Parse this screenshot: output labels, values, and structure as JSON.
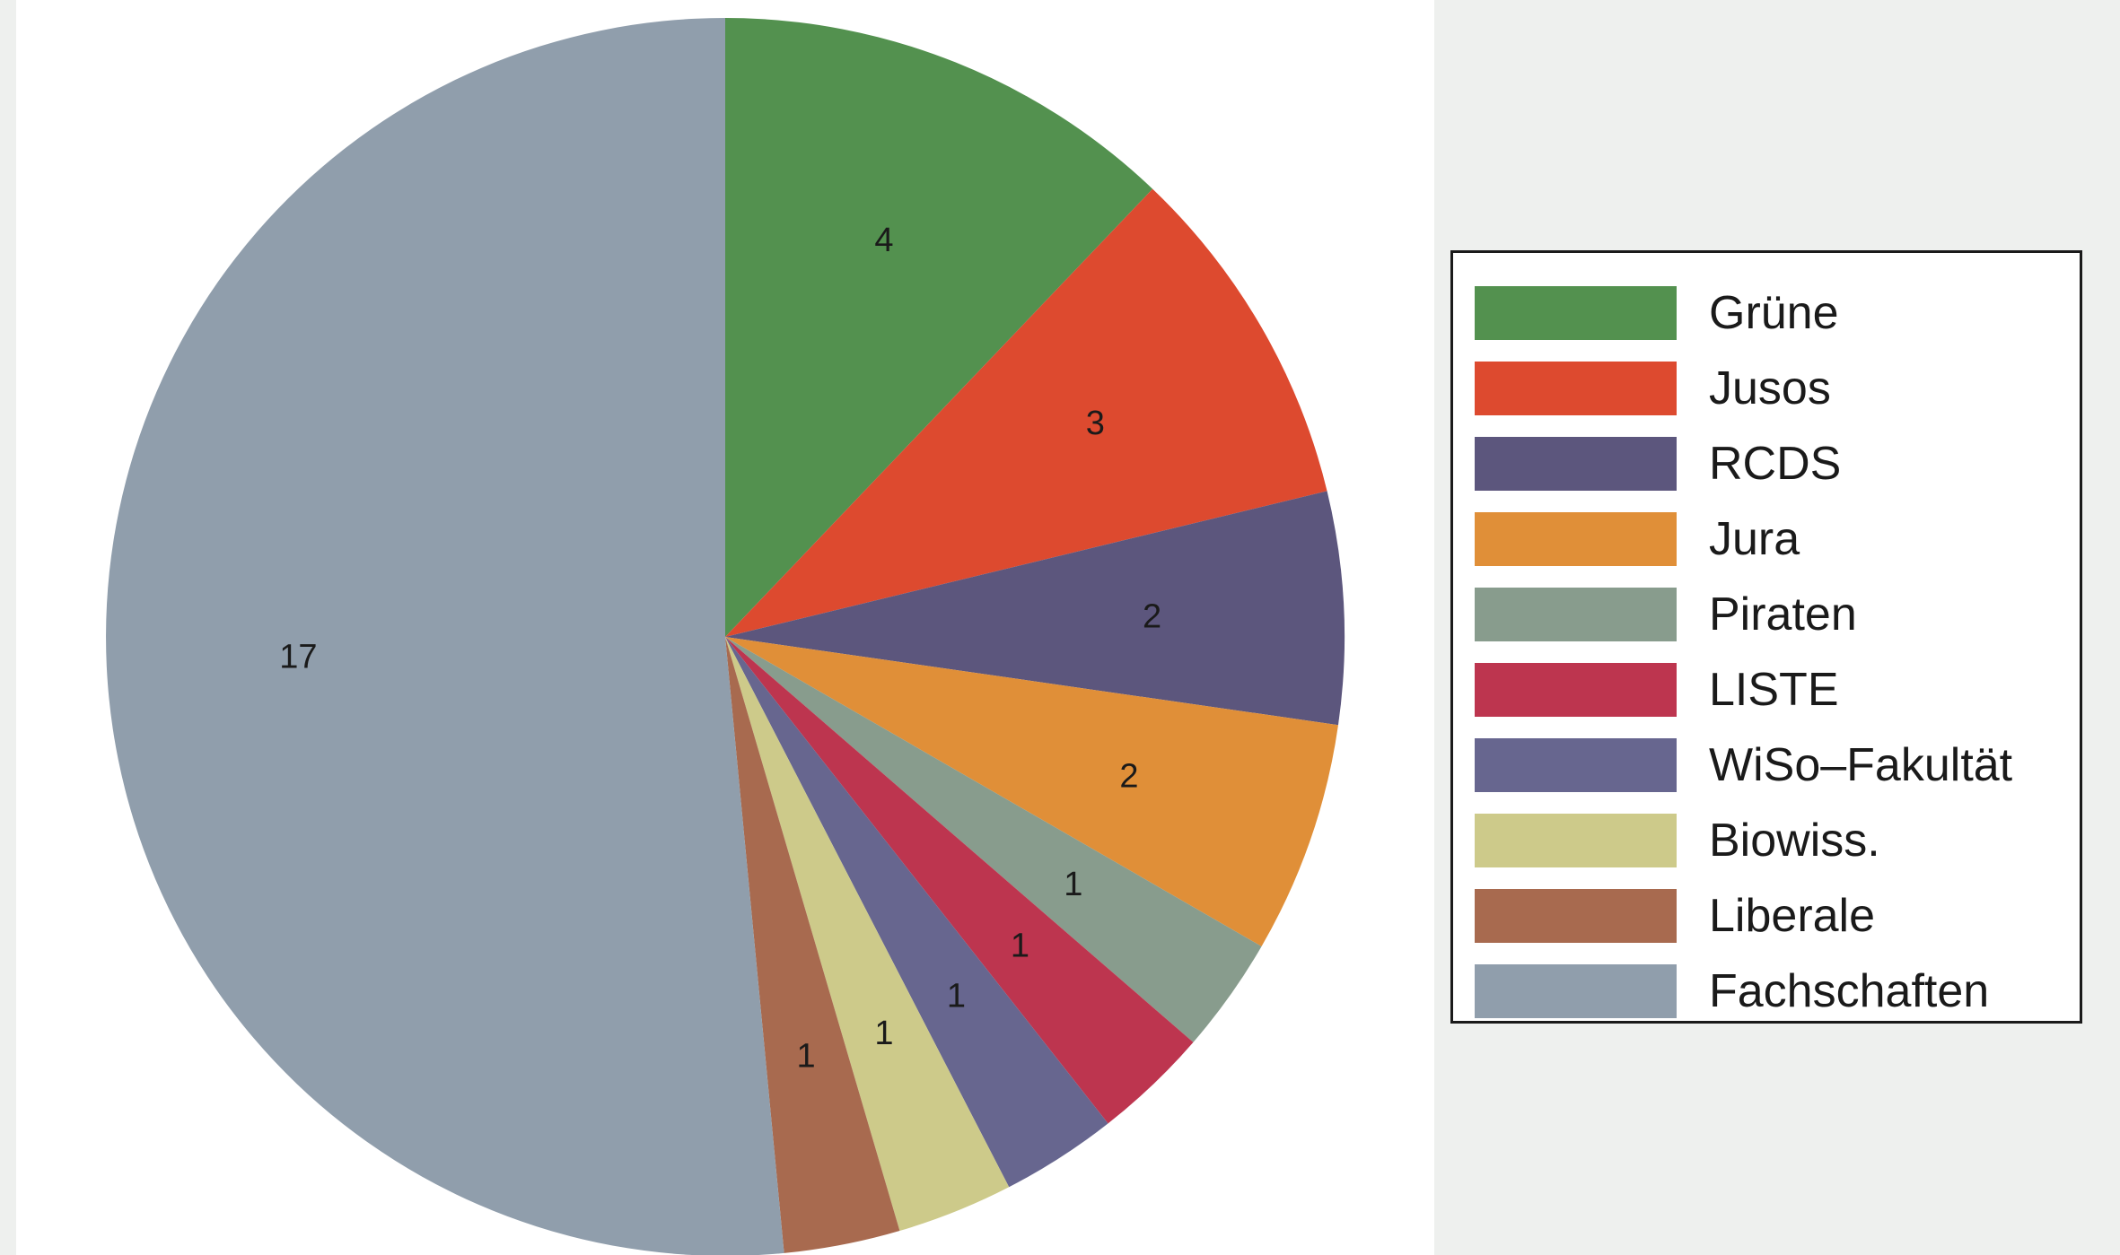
{
  "chart_data": {
    "type": "pie",
    "title": "",
    "slices": [
      {
        "name": "Grüne",
        "value": 4,
        "label": "4",
        "color": "#53914f"
      },
      {
        "name": "Jusos",
        "value": 3,
        "label": "3",
        "color": "#dd4a2f"
      },
      {
        "name": "RCDS",
        "value": 2,
        "label": "2",
        "color": "#5c567d"
      },
      {
        "name": "Jura",
        "value": 2,
        "label": "2",
        "color": "#e08f38"
      },
      {
        "name": "Piraten",
        "value": 1,
        "label": "1",
        "color": "#889c8d"
      },
      {
        "name": "LISTE",
        "value": 1,
        "label": "1",
        "color": "#bd354f"
      },
      {
        "name": "WiSo–Fakultät",
        "value": 1,
        "label": "1",
        "color": "#67668f"
      },
      {
        "name": "Biowiss.",
        "value": 1,
        "label": "1",
        "color": "#cdca8a"
      },
      {
        "name": "Liberale",
        "value": 1,
        "label": "1",
        "color": "#a86a4f"
      },
      {
        "name": "Fachschaften",
        "value": 17,
        "label": "17",
        "color": "#909eac"
      }
    ],
    "start": "12 o'clock",
    "direction": "clockwise",
    "legend_placement": "right"
  }
}
